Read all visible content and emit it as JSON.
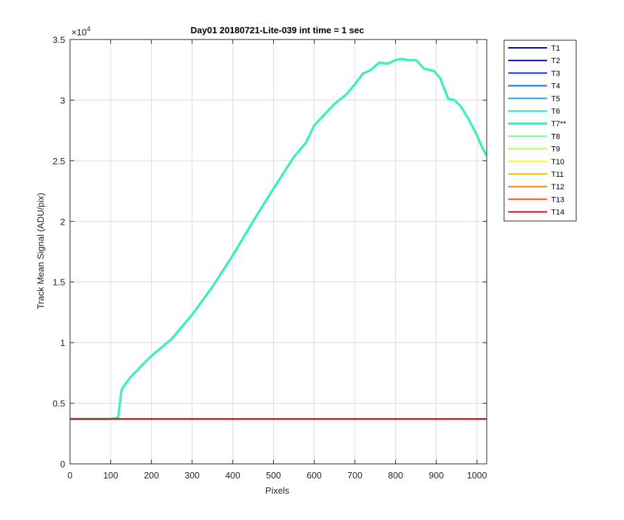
{
  "chart_data": {
    "type": "line",
    "title": "Day01 20180721-Lite-039 int time = 1 sec",
    "xlabel": "Pixels",
    "ylabel": "Track Mean Signal (ADU/pix)",
    "y_exponent_label": "×10",
    "y_exponent": "4",
    "xlim": [
      0,
      1024
    ],
    "ylim": [
      0,
      35000
    ],
    "xticks": [
      0,
      100,
      200,
      300,
      400,
      500,
      600,
      700,
      800,
      900,
      1000
    ],
    "yticks": [
      0,
      5000,
      10000,
      15000,
      20000,
      25000,
      30000,
      35000
    ],
    "ytick_labels": [
      "0",
      "0.5",
      "1",
      "1.5",
      "2",
      "2.5",
      "3",
      "3.5"
    ],
    "grid": true,
    "legend_position": "outside-right",
    "series": [
      {
        "name": "T1",
        "color": "#00008f",
        "x": [
          0,
          1024
        ],
        "y": [
          3700,
          3700
        ]
      },
      {
        "name": "T2",
        "color": "#0000df",
        "x": [
          0,
          1024
        ],
        "y": [
          3700,
          3700
        ]
      },
      {
        "name": "T3",
        "color": "#0030ff",
        "x": [
          0,
          1024
        ],
        "y": [
          3700,
          3700
        ]
      },
      {
        "name": "T4",
        "color": "#0070ff",
        "x": [
          0,
          1024
        ],
        "y": [
          3700,
          3700
        ]
      },
      {
        "name": "T5",
        "color": "#00b0ff",
        "x": [
          0,
          1024
        ],
        "y": [
          3700,
          3700
        ]
      },
      {
        "name": "T6",
        "color": "#10efef",
        "x": [
          0,
          1024
        ],
        "y": [
          3700,
          3700
        ]
      },
      {
        "name": "T7**",
        "color": "#40efbf",
        "x": [
          0,
          100,
          118,
          122,
          126,
          130,
          150,
          200,
          250,
          300,
          350,
          400,
          450,
          470,
          500,
          550,
          580,
          600,
          650,
          680,
          700,
          720,
          740,
          760,
          780,
          800,
          815,
          830,
          850,
          870,
          895,
          910,
          920,
          930,
          945,
          960,
          980,
          1000,
          1010,
          1024
        ],
        "y": [
          3700,
          3700,
          3800,
          4800,
          6000,
          6300,
          7200,
          8900,
          10300,
          12300,
          14600,
          17200,
          20000,
          21100,
          22700,
          25300,
          26500,
          27900,
          29700,
          30500,
          31300,
          32200,
          32500,
          33100,
          33000,
          33300,
          33400,
          33300,
          33300,
          32600,
          32400,
          31800,
          30900,
          30100,
          30000,
          29500,
          28400,
          27100,
          26300,
          25400
        ]
      },
      {
        "name": "T8",
        "color": "#70ff8f",
        "x": [
          0,
          1024
        ],
        "y": [
          3700,
          3700
        ]
      },
      {
        "name": "T9",
        "color": "#afff50",
        "x": [
          0,
          1024
        ],
        "y": [
          3700,
          3700
        ]
      },
      {
        "name": "T10",
        "color": "#efff10",
        "x": [
          0,
          1024
        ],
        "y": [
          3700,
          3700
        ]
      },
      {
        "name": "T11",
        "color": "#ffbf00",
        "x": [
          0,
          1024
        ],
        "y": [
          3700,
          3700
        ]
      },
      {
        "name": "T12",
        "color": "#ff7f00",
        "x": [
          0,
          1024
        ],
        "y": [
          3700,
          3700
        ]
      },
      {
        "name": "T13",
        "color": "#ff4000",
        "x": [
          0,
          1024
        ],
        "y": [
          3700,
          3700
        ]
      },
      {
        "name": "T14",
        "color": "#ef0000",
        "x": [
          0,
          1024
        ],
        "y": [
          3700,
          3700
        ]
      }
    ]
  }
}
